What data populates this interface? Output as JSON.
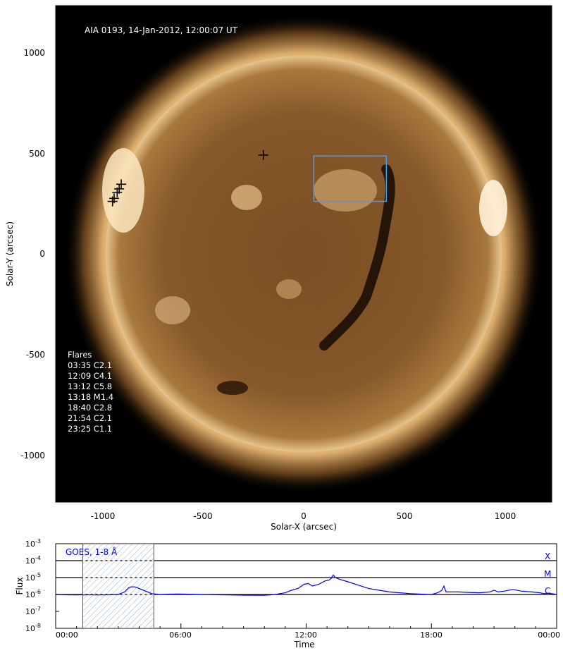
{
  "image_title": "AIA 0193, 14-Jan-2012, 12:00:07 UT",
  "colors": {
    "sun_core": "#8a5a2a",
    "sun_dark": "#3a220c",
    "limb": "#f2d2a0",
    "box": "#3aa0ff",
    "goes_line": "#0000ee"
  },
  "flare_title": "Flares",
  "flares": [
    "03:35 C2.1",
    "12:09 C4.1",
    "13:12 C5.8",
    "13:18 M1.4",
    "18:40 C2.8",
    "21:54 C2.1",
    "23:25 C1.1"
  ],
  "map_axes": {
    "xlabel": "Solar-X (arcsec)",
    "ylabel": "Solar-Y (arcsec)",
    "xticks": [
      "-1000",
      "-500",
      "0",
      "500",
      "1000"
    ],
    "yticks": [
      "1000",
      "500",
      "0",
      "-500",
      "-1000"
    ]
  },
  "goes": {
    "legend": "GOES, 1-8 Å",
    "ylabel": "Flux",
    "xlabel": "Time",
    "xticks": [
      "00:00",
      "06:00",
      "12:00",
      "18:00",
      "00:00"
    ],
    "ytick_base": "10",
    "ytick_exps": [
      "-3",
      "-4",
      "-5",
      "-6",
      "-7",
      "-8"
    ],
    "class_labels": [
      "X",
      "M",
      "C"
    ]
  },
  "chart_data": [
    {
      "type": "scatter",
      "title": "AIA 0193, 14-Jan-2012, 12:00:07 UT",
      "xlabel": "Solar-X (arcsec)",
      "ylabel": "Solar-Y (arcsec)",
      "xlim": [
        -1230,
        1230
      ],
      "ylim": [
        -1230,
        1230
      ],
      "markers": [
        {
          "x": -200,
          "y": 490
        },
        {
          "x": -905,
          "y": 345
        },
        {
          "x": -925,
          "y": 305
        },
        {
          "x": -940,
          "y": 275
        },
        {
          "x": -948,
          "y": 260
        },
        {
          "x": -915,
          "y": 322
        }
      ],
      "region_box": {
        "x0": 50,
        "x1": 410,
        "y0": 260,
        "y1": 485
      },
      "solar_radius": 978
    },
    {
      "type": "line",
      "title": "GOES, 1-8 Å",
      "xlabel": "Time",
      "ylabel": "Flux",
      "xlim_hours": [
        0,
        24
      ],
      "ylim_log10": [
        -8,
        -3
      ],
      "scale": "log",
      "class_lines_log10": [
        -6,
        -5,
        -4
      ],
      "shaded_interval_hours": [
        1.3,
        4.7
      ],
      "series": [
        {
          "x_hours": [
            0,
            0.5,
            1,
            1.5,
            2,
            2.5,
            3,
            3.3,
            3.5,
            3.6,
            3.8,
            4.0,
            4.3,
            4.6,
            5,
            5.5,
            6,
            7,
            8,
            9,
            10,
            10.5,
            11,
            11.3,
            11.6,
            11.9,
            12.1,
            12.3,
            12.6,
            12.9,
            13.1,
            13.2,
            13.3,
            13.4,
            13.6,
            14,
            14.5,
            15,
            15.5,
            16,
            16.5,
            17,
            17.5,
            18,
            18.3,
            18.5,
            18.6,
            18.7,
            18.9,
            19.3,
            19.8,
            20.3,
            20.8,
            21.0,
            21.2,
            21.5,
            21.9,
            22.3,
            22.8,
            23.2,
            23.4,
            23.6,
            24
          ],
          "log10_flux": [
            -6.0,
            -6.02,
            -6.03,
            -6.02,
            -6.03,
            -6.02,
            -6.0,
            -5.85,
            -5.6,
            -5.55,
            -5.55,
            -5.65,
            -5.8,
            -5.95,
            -6.0,
            -5.98,
            -5.97,
            -6.0,
            -6.02,
            -6.04,
            -6.05,
            -6.0,
            -5.9,
            -5.75,
            -5.65,
            -5.4,
            -5.35,
            -5.5,
            -5.4,
            -5.2,
            -5.15,
            -5.05,
            -4.85,
            -5.0,
            -5.1,
            -5.25,
            -5.45,
            -5.65,
            -5.75,
            -5.85,
            -5.9,
            -5.95,
            -5.98,
            -6.0,
            -5.9,
            -5.75,
            -5.5,
            -5.85,
            -5.85,
            -5.85,
            -5.88,
            -5.9,
            -5.85,
            -5.75,
            -5.85,
            -5.8,
            -5.7,
            -5.8,
            -5.85,
            -5.9,
            -5.95,
            -5.92,
            -6.0
          ]
        }
      ]
    }
  ]
}
